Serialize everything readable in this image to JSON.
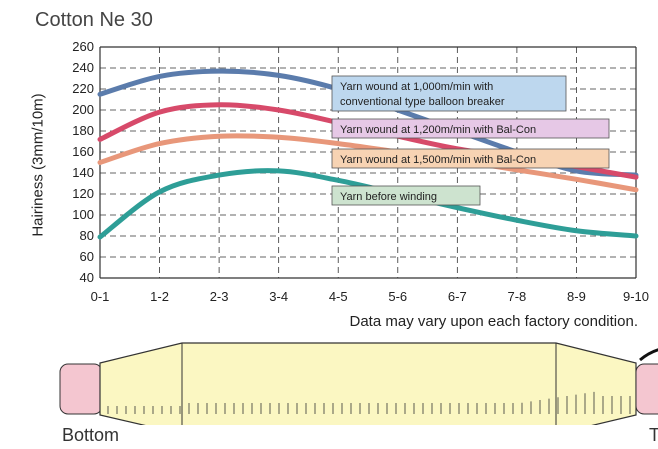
{
  "title": "Cotton Ne 30",
  "note": "Data may vary upon each factory condition.",
  "bobbin": {
    "bottom_label": "Bottom",
    "top_label": "T"
  },
  "colors": {
    "series": [
      "#5b7cac",
      "#d74a6a",
      "#e8977a",
      "#2e9e97"
    ],
    "label_bg": [
      "#bdd7ee",
      "#e6c8e6",
      "#f7d3b3",
      "#cde3cf"
    ],
    "bobbin_fill": "#fbf7c2",
    "bobbin_end": "#f4c6d0"
  },
  "chart_data": {
    "type": "line",
    "ylabel": "Hairiness (3mm/10m)",
    "xlabel": "",
    "categories": [
      "0-1",
      "1-2",
      "2-3",
      "3-4",
      "4-5",
      "5-6",
      "6-7",
      "7-8",
      "8-9",
      "9-10"
    ],
    "ylim": [
      40,
      260
    ],
    "yticks": [
      40,
      60,
      80,
      100,
      120,
      140,
      160,
      180,
      200,
      220,
      240,
      260
    ],
    "grid": true,
    "series": [
      {
        "name": "Yarn wound at 1,000m/min with conventional type balloon breaker",
        "values": [
          215,
          232,
          237,
          233,
          220,
          200,
          180,
          160,
          142,
          138
        ]
      },
      {
        "name": "Yarn wound at 1,200m/min with Bal-Con",
        "values": [
          172,
          198,
          205,
          200,
          188,
          175,
          163,
          155,
          146,
          136
        ]
      },
      {
        "name": "Yarn wound at 1,500m/min with Bal-Con",
        "values": [
          150,
          168,
          175,
          174,
          168,
          160,
          152,
          143,
          134,
          124
        ]
      },
      {
        "name": "Yarn before winding",
        "values": [
          79,
          122,
          138,
          142,
          133,
          120,
          107,
          95,
          85,
          80
        ]
      }
    ]
  }
}
